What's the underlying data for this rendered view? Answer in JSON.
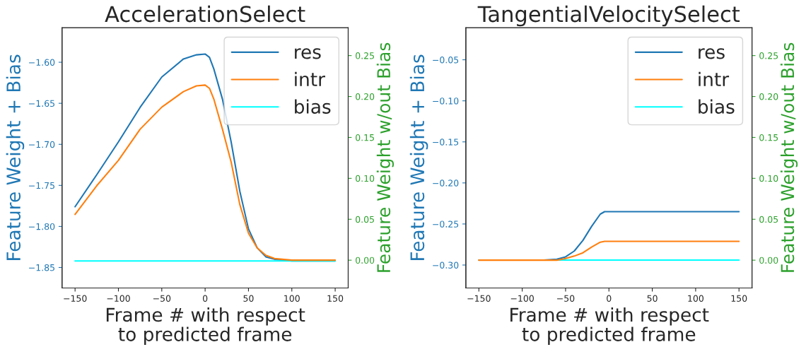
{
  "chart_data": [
    {
      "type": "line",
      "title": "AccelerationSelect",
      "xlabel": "Frame # with respect\nto predicted frame",
      "ylabel": "Feature Weight + Bias",
      "y2label": "Feature Weight w/out Bias",
      "xlim": [
        -165,
        165
      ],
      "xticks": [
        -150,
        -100,
        -50,
        0,
        50,
        100,
        150
      ],
      "ylim": [
        -1.875,
        -1.558
      ],
      "yticks": [
        {
          "value": -1.85,
          "label": "−1.85"
        },
        {
          "value": -1.8,
          "label": "−1.80"
        },
        {
          "value": -1.75,
          "label": "−1.75"
        },
        {
          "value": -1.7,
          "label": "−1.70"
        },
        {
          "value": -1.65,
          "label": "−1.65"
        },
        {
          "value": -1.6,
          "label": "−1.60"
        }
      ],
      "y2lim": [
        -0.034,
        0.284
      ],
      "y2ticks": [
        {
          "value": 0,
          "label": "0.00"
        },
        {
          "value": 0.05,
          "label": "0.05"
        },
        {
          "value": 0.1,
          "label": "0.10"
        },
        {
          "value": 0.15,
          "label": "0.15"
        },
        {
          "value": 0.2,
          "label": "0.20"
        },
        {
          "value": 0.25,
          "label": "0.25"
        }
      ],
      "legend": "top right",
      "grid": false,
      "series": [
        {
          "name": "res",
          "color": "#1f77b4",
          "x": [
            -150,
            -125,
            -100,
            -75,
            -50,
            -25,
            -10,
            0,
            5,
            10,
            20,
            30,
            40,
            50,
            60,
            70,
            80,
            100,
            150
          ],
          "values": [
            -1.776,
            -1.737,
            -1.697,
            -1.655,
            -1.618,
            -1.596,
            -1.591,
            -1.59,
            -1.594,
            -1.608,
            -1.645,
            -1.697,
            -1.757,
            -1.803,
            -1.826,
            -1.837,
            -1.84,
            -1.842,
            -1.842
          ]
        },
        {
          "name": "intr",
          "color": "#ff7f0e",
          "axis": "y2",
          "x": [
            -150,
            -125,
            -100,
            -75,
            -50,
            -25,
            -10,
            0,
            5,
            10,
            20,
            30,
            40,
            50,
            60,
            70,
            80,
            100,
            150
          ],
          "values": [
            0.056,
            0.091,
            0.122,
            0.16,
            0.187,
            0.206,
            0.213,
            0.214,
            0.21,
            0.197,
            0.16,
            0.12,
            0.068,
            0.033,
            0.015,
            0.006,
            0.002,
            0.0,
            0.0
          ]
        },
        {
          "name": "bias",
          "color": "#00ffff",
          "x": [
            -150,
            150
          ],
          "values": [
            -1.842,
            -1.842
          ]
        }
      ]
    },
    {
      "type": "line",
      "title": "TangentialVelocitySelect",
      "xlabel": "Frame # with respect\nto predicted frame",
      "ylabel": "Feature Weight + Bias",
      "y2label": "Feature Weight w/out Bias",
      "xlim": [
        -165,
        165
      ],
      "xticks": [
        -150,
        -100,
        -50,
        0,
        50,
        100,
        150
      ],
      "ylim": [
        -0.328,
        -0.011
      ],
      "yticks": [
        {
          "value": -0.3,
          "label": "−0.30"
        },
        {
          "value": -0.25,
          "label": "−0.25"
        },
        {
          "value": -0.2,
          "label": "−0.20"
        },
        {
          "value": -0.15,
          "label": "−0.15"
        },
        {
          "value": -0.1,
          "label": "−0.10"
        },
        {
          "value": -0.05,
          "label": "−0.05"
        }
      ],
      "y2lim": [
        -0.034,
        0.284
      ],
      "y2ticks": [
        {
          "value": 0,
          "label": "0.00"
        },
        {
          "value": 0.05,
          "label": "0.05"
        },
        {
          "value": 0.1,
          "label": "0.10"
        },
        {
          "value": 0.15,
          "label": "0.15"
        },
        {
          "value": 0.2,
          "label": "0.20"
        },
        {
          "value": 0.25,
          "label": "0.25"
        }
      ],
      "legend": "top right",
      "grid": false,
      "series": [
        {
          "name": "res",
          "color": "#1f77b4",
          "x": [
            -150,
            -75,
            -60,
            -50,
            -40,
            -30,
            -20,
            -10,
            -5,
            0,
            150
          ],
          "values": [
            -0.294,
            -0.294,
            -0.293,
            -0.29,
            -0.283,
            -0.27,
            -0.253,
            -0.238,
            -0.235,
            -0.235,
            -0.235
          ]
        },
        {
          "name": "intr",
          "color": "#ff7f0e",
          "axis": "y2",
          "x": [
            -150,
            -60,
            -50,
            -40,
            -30,
            -20,
            -10,
            -5,
            0,
            150
          ],
          "values": [
            0.0,
            0.0,
            0.002,
            0.005,
            0.009,
            0.016,
            0.022,
            0.023,
            0.023,
            0.023
          ]
        },
        {
          "name": "bias",
          "color": "#00ffff",
          "x": [
            -150,
            150
          ],
          "values": [
            -0.294,
            -0.294
          ]
        }
      ]
    }
  ]
}
